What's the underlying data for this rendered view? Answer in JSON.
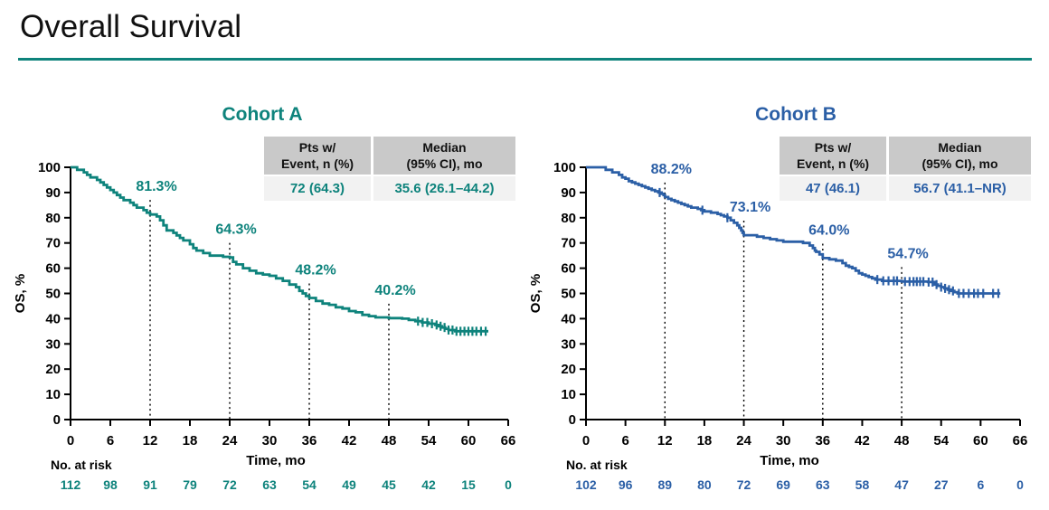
{
  "page": {
    "title": "Overall Survival"
  },
  "colors": {
    "accent_teal": "#0E837C",
    "cohort_a": "#0E837C",
    "cohort_b": "#2B5FA6",
    "table_header_bg": "#C9C9C9",
    "table_value_bg": "#F2F2F2",
    "axis": "#000000"
  },
  "chart_data": {
    "type": "line",
    "subtype": "kaplan-meier-step",
    "x_axis": {
      "label": "Time, mo",
      "ticks": [
        0,
        6,
        12,
        18,
        24,
        30,
        36,
        42,
        48,
        54,
        60,
        66
      ],
      "range": [
        0,
        66
      ]
    },
    "y_axis": {
      "label": "OS, %",
      "ticks": [
        0,
        10,
        20,
        30,
        40,
        50,
        60,
        70,
        80,
        90,
        100
      ],
      "range": [
        0,
        100
      ]
    },
    "charts": [
      {
        "title": "Cohort A",
        "color": "#0E837C",
        "stats": {
          "events_header": [
            "Pts w/",
            "Event, n (%)"
          ],
          "median_header": [
            "Median",
            "(95% CI), mo"
          ],
          "events_value": "72 (64.3)",
          "median_value": "35.6 (26.1–44.2)"
        },
        "milestones": [
          {
            "t": 12,
            "label": "81.3%"
          },
          {
            "t": 24,
            "label": "64.3%"
          },
          {
            "t": 36,
            "label": "48.2%"
          },
          {
            "t": 48,
            "label": "40.2%"
          }
        ],
        "steps": [
          [
            0,
            100
          ],
          [
            1,
            99
          ],
          [
            2,
            98
          ],
          [
            2.5,
            97
          ],
          [
            3,
            96
          ],
          [
            4,
            95
          ],
          [
            4.5,
            94
          ],
          [
            5,
            93
          ],
          [
            5.5,
            92
          ],
          [
            6,
            91
          ],
          [
            6.5,
            90
          ],
          [
            7,
            89
          ],
          [
            7.5,
            88
          ],
          [
            8,
            87
          ],
          [
            9,
            86
          ],
          [
            9.5,
            85
          ],
          [
            10,
            84
          ],
          [
            11,
            83
          ],
          [
            11.5,
            82
          ],
          [
            12,
            81.3
          ],
          [
            13,
            80.5
          ],
          [
            13.5,
            79
          ],
          [
            14,
            77
          ],
          [
            14.5,
            75
          ],
          [
            15.5,
            74
          ],
          [
            16,
            73
          ],
          [
            16.5,
            72
          ],
          [
            17,
            71
          ],
          [
            18,
            69.5
          ],
          [
            18.5,
            68
          ],
          [
            19,
            67
          ],
          [
            20,
            66
          ],
          [
            21,
            65
          ],
          [
            23,
            64.5
          ],
          [
            24,
            64.3
          ],
          [
            24.5,
            62.5
          ],
          [
            25,
            61.5
          ],
          [
            26,
            60
          ],
          [
            27,
            59
          ],
          [
            28,
            58
          ],
          [
            29,
            57.5
          ],
          [
            30,
            57
          ],
          [
            31,
            56
          ],
          [
            32,
            55
          ],
          [
            33,
            53.5
          ],
          [
            34,
            52.5
          ],
          [
            34.5,
            51
          ],
          [
            35,
            50
          ],
          [
            35.5,
            49
          ],
          [
            36,
            48.2
          ],
          [
            37,
            47
          ],
          [
            38,
            46
          ],
          [
            39,
            45.5
          ],
          [
            40,
            44.5
          ],
          [
            41,
            44
          ],
          [
            42,
            43
          ],
          [
            43,
            42.5
          ],
          [
            44,
            41.5
          ],
          [
            45,
            41
          ],
          [
            46,
            40.5
          ],
          [
            48,
            40.2
          ],
          [
            50,
            40
          ],
          [
            51,
            39.5
          ],
          [
            52,
            39
          ],
          [
            53,
            38.5
          ],
          [
            54,
            38
          ],
          [
            55,
            37.5
          ],
          [
            55.5,
            37
          ],
          [
            56,
            36.5
          ],
          [
            56.5,
            36
          ],
          [
            57,
            35.5
          ],
          [
            58,
            35
          ],
          [
            63,
            35
          ]
        ],
        "censor_times": [
          52.4,
          53.1,
          53.8,
          54.5,
          55.2,
          55.8,
          56.4,
          57,
          57.6,
          58.2,
          58.8,
          59.4,
          60,
          60.6,
          61.2,
          61.9,
          62.6
        ],
        "risk_label": "No. at risk",
        "risk_counts": [
          112,
          98,
          91,
          79,
          72,
          63,
          54,
          49,
          45,
          42,
          15,
          0
        ]
      },
      {
        "title": "Cohort B",
        "color": "#2B5FA6",
        "stats": {
          "events_header": [
            "Pts w/",
            "Event, n (%)"
          ],
          "median_header": [
            "Median",
            "(95% CI), mo"
          ],
          "events_value": "47 (46.1)",
          "median_value": "56.7 (41.1–NR)"
        },
        "milestones": [
          {
            "t": 12,
            "label": "88.2%"
          },
          {
            "t": 24,
            "label": "73.1%"
          },
          {
            "t": 36,
            "label": "64.0%"
          },
          {
            "t": 48,
            "label": "54.7%"
          }
        ],
        "steps": [
          [
            0,
            100
          ],
          [
            2.5,
            100
          ],
          [
            3,
            99
          ],
          [
            4,
            98
          ],
          [
            5,
            97
          ],
          [
            5.5,
            96
          ],
          [
            6,
            95.5
          ],
          [
            6.5,
            94.5
          ],
          [
            7,
            94
          ],
          [
            7.5,
            93.5
          ],
          [
            8,
            93
          ],
          [
            8.5,
            92.5
          ],
          [
            9,
            92
          ],
          [
            9.5,
            91.5
          ],
          [
            10,
            91
          ],
          [
            10.5,
            90.5
          ],
          [
            11,
            90
          ],
          [
            11.5,
            89.5
          ],
          [
            11.8,
            89
          ],
          [
            12,
            88.2
          ],
          [
            12.5,
            87.5
          ],
          [
            13,
            87
          ],
          [
            13.5,
            86.5
          ],
          [
            14,
            86
          ],
          [
            14.5,
            85.5
          ],
          [
            15,
            85
          ],
          [
            15.5,
            84.5
          ],
          [
            16,
            84
          ],
          [
            17,
            83.5
          ],
          [
            17.5,
            83
          ],
          [
            18,
            82.5
          ],
          [
            19,
            82
          ],
          [
            20,
            81.5
          ],
          [
            20.5,
            81
          ],
          [
            21,
            80.5
          ],
          [
            21.5,
            80
          ],
          [
            22,
            79
          ],
          [
            22.5,
            78
          ],
          [
            23,
            77
          ],
          [
            23.3,
            76
          ],
          [
            23.6,
            75
          ],
          [
            23.8,
            74
          ],
          [
            24,
            73.1
          ],
          [
            26,
            72.5
          ],
          [
            27,
            72
          ],
          [
            28,
            71.5
          ],
          [
            29,
            71
          ],
          [
            30,
            70.5
          ],
          [
            33,
            70
          ],
          [
            34,
            69
          ],
          [
            34.5,
            68
          ],
          [
            34.8,
            67
          ],
          [
            35,
            66.5
          ],
          [
            35.5,
            65.5
          ],
          [
            36,
            64
          ],
          [
            37,
            63.5
          ],
          [
            38,
            63
          ],
          [
            39,
            62
          ],
          [
            39.5,
            61
          ],
          [
            40,
            60.5
          ],
          [
            40.5,
            60
          ],
          [
            41,
            59
          ],
          [
            41.5,
            58
          ],
          [
            42,
            57.5
          ],
          [
            42.5,
            57
          ],
          [
            43,
            56.5
          ],
          [
            43.5,
            56
          ],
          [
            44,
            55.5
          ],
          [
            45,
            55
          ],
          [
            48,
            54.7
          ],
          [
            52,
            54.5
          ],
          [
            53,
            53.5
          ],
          [
            53.5,
            53
          ],
          [
            54,
            52.5
          ],
          [
            54.5,
            52
          ],
          [
            55,
            51.5
          ],
          [
            55.5,
            51
          ],
          [
            56,
            50.5
          ],
          [
            56.5,
            50
          ],
          [
            63,
            50
          ]
        ],
        "censor_times": [
          11.2,
          17.7,
          21.5,
          44.3,
          45.2,
          46,
          46.8,
          47.3,
          48.5,
          49.2,
          49.8,
          50.3,
          50.8,
          51.3,
          52.1,
          52.7,
          53.3,
          54,
          54.6,
          55.2,
          55.8,
          56.7,
          57.4,
          58.2,
          59,
          59.6,
          60.4,
          61.9,
          62.7
        ],
        "risk_label": "No. at risk",
        "risk_counts": [
          102,
          96,
          89,
          80,
          72,
          69,
          63,
          58,
          47,
          27,
          6,
          0
        ]
      }
    ]
  }
}
